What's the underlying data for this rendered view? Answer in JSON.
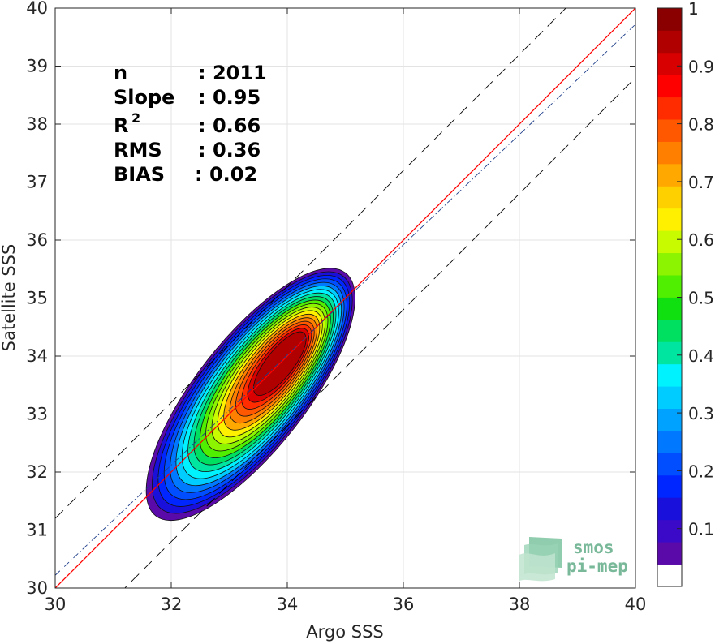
{
  "chart_data": {
    "type": "contour",
    "xlabel": "Argo SSS",
    "ylabel": "Satellite SSS",
    "xlim": [
      30,
      40
    ],
    "ylim": [
      30,
      40
    ],
    "xticks": [
      "30",
      "32",
      "34",
      "36",
      "38",
      "40"
    ],
    "yticks": [
      "30",
      "31",
      "32",
      "33",
      "34",
      "35",
      "36",
      "37",
      "38",
      "39",
      "40"
    ],
    "grid": true,
    "stats": [
      {
        "label": "n",
        "value": ": 2011"
      },
      {
        "label": "Slope",
        "value": ": 0.95"
      },
      {
        "label": "R",
        "sup": "2",
        "value": ": 0.66"
      },
      {
        "label": "RMS",
        "value": ": 0.36"
      },
      {
        "label": "BIAS",
        "value": ": 0.02"
      }
    ],
    "reference_lines": [
      {
        "name": "1:1",
        "slope": 1.0,
        "intercept": 0.0,
        "style": "solid",
        "color": "#ff0000"
      },
      {
        "name": "regression",
        "slope": 0.95,
        "intercept": 1.72,
        "style": "dash-dot",
        "color": "#1f3f8a"
      },
      {
        "name": "upper-bound",
        "slope": 1.0,
        "intercept": 1.2,
        "style": "dashed",
        "color": "#000000"
      },
      {
        "name": "lower-bound",
        "slope": 1.0,
        "intercept": -1.2,
        "style": "dashed",
        "color": "#000000"
      }
    ],
    "density_peak": {
      "x": 33.9,
      "y": 33.9
    },
    "density_levels": [
      0.05,
      0.1,
      0.15,
      0.2,
      0.25,
      0.3,
      0.35,
      0.4,
      0.45,
      0.5,
      0.55,
      0.6,
      0.65,
      0.7,
      0.75,
      0.8,
      0.85,
      0.9,
      0.95
    ],
    "colorbar": {
      "min": 0,
      "max": 1,
      "tick_labels": [
        "0.1",
        "0.2",
        "0.3",
        "0.4",
        "0.5",
        "0.6",
        "0.7",
        "0.8",
        "0.9",
        "1"
      ],
      "colors": [
        "#ffffff",
        "#5a0aa8",
        "#3a0ac8",
        "#1a10dc",
        "#0026ff",
        "#004eff",
        "#0078ff",
        "#00a2ff",
        "#00ccff",
        "#00f2ff",
        "#00e5a0",
        "#00e060",
        "#10e010",
        "#50ee00",
        "#8cf400",
        "#c8fa00",
        "#fff000",
        "#ffd000",
        "#ffa800",
        "#ff8000",
        "#ff5800",
        "#ff2c00",
        "#ff0000",
        "#d80000",
        "#b00000",
        "#8a0000"
      ]
    }
  },
  "logo": {
    "line1": "smos",
    "line2": "pi-mep"
  }
}
